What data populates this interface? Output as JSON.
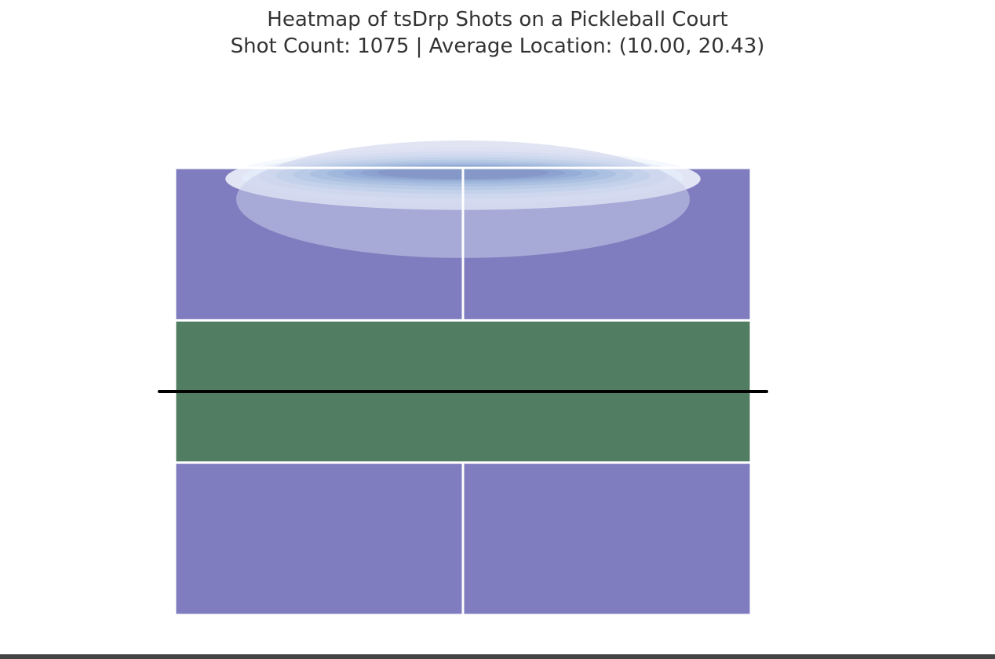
{
  "chart_data": {
    "type": "heatmap",
    "title": "Heatmap of tsDrp Shots on a Pickleball Court",
    "subtitle": "Shot Count: 1075 | Average Location: (10.00, 20.43)",
    "shot_type": "tsDrp",
    "shot_count": 1075,
    "average_location": [
      10.0,
      20.43
    ],
    "court": {
      "width": 20,
      "length": 44,
      "kitchen_depth": 7,
      "court_color": "#7f7dbf",
      "kitchen_color": "#517d62",
      "line_color": "#ffffff",
      "net_color": "#000000"
    },
    "density": {
      "colormap": "Blues",
      "peak_x": 10.0,
      "peak_y": 44.0,
      "spread_x": 7.5,
      "spread_y": 1.7,
      "levels": 10
    },
    "grid": false,
    "axes_visible": false,
    "palette": [
      "#f3f7fd",
      "#e3eef9",
      "#d0e1f2",
      "#b7d4ea",
      "#9dc2e0",
      "#82add5",
      "#6a97ca",
      "#5580bd",
      "#4168ad",
      "#2f539b"
    ]
  }
}
